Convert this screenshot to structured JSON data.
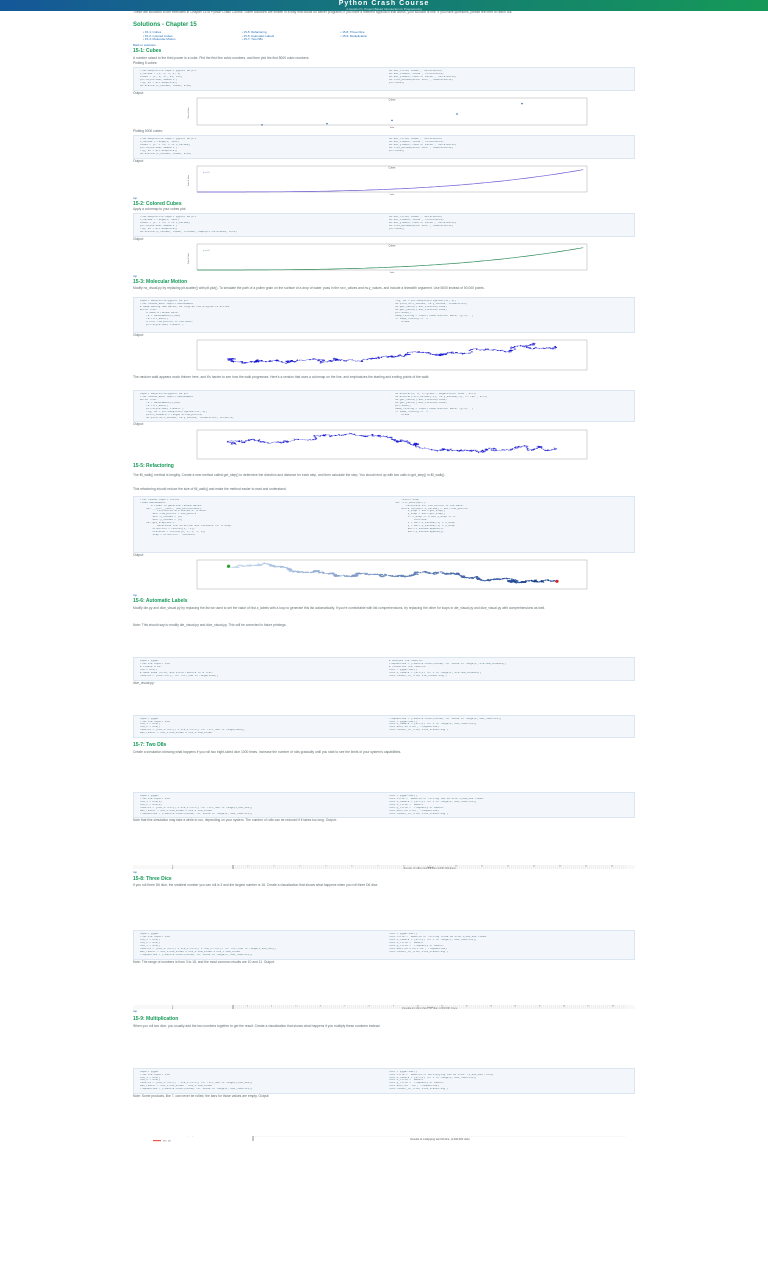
{
  "header": {
    "title": "Python Crash Course",
    "subtitle": "A Hands-On, Project-Based Introduction to Programming"
  },
  "blocks": [
    {
      "t": "p",
      "text": "These are solutions to the exercises in Chapter 15 of Python Crash Course. Some solutions are written in a way that builds on earlier programs; if you have a different approach that works, your solution is fine. If you have questions, please feel free to reach out."
    },
    {
      "t": "h1",
      "text": "Solutions - Chapter 15"
    },
    {
      "t": "ul",
      "items": [
        "15-1: Cubes",
        "15-2: Colored Cubes",
        "15-3: Molecular Motion",
        "15-5: Refactoring",
        "15-6: Automatic Labels",
        "15-7: Two D8s",
        "15-8: Three Dice",
        "15-9: Multiplication"
      ]
    },
    {
      "t": "a",
      "text": "Back to solutions."
    },
    {
      "t": "h2",
      "text": "15-1: Cubes"
    },
    {
      "t": "p",
      "text": "A number raised to the third power is a cube. Plot the first five cubic numbers, and then plot the first 5000 cubic numbers."
    },
    {
      "t": "p",
      "text": "Plotting 5 cubes:"
    },
    {
      "t": "code",
      "lines": [
        "from matplotlib import pyplot as plt",
        "",
        "x_values = [1, 2, 3, 4, 5]",
        "cubes = [1, 8, 27, 64, 125]",
        "",
        "plt.style.use('seaborn')",
        "fig, ax = plt.subplots()",
        "ax.scatter(x_values, cubes, s=40)",
        "ax.set_title(\"Cubes\", fontsize=24)",
        "ax.set_xlabel('Value', fontsize=14)",
        "ax.set_ylabel('Cube of Value', fontsize=14)",
        "ax.tick_params(axis='both', labelsize=14)",
        "",
        "plt.show()"
      ]
    },
    {
      "t": "p",
      "text": "Output:"
    },
    {
      "t": "chart",
      "ci": 0
    },
    {
      "t": "p",
      "text": "Plotting 5000 cubes:"
    },
    {
      "t": "code",
      "lines": [
        "from matplotlib import pyplot as plt",
        "",
        "x_values = range(1, 5001)",
        "cubes = [x**3 for x in x_values]",
        "",
        "plt.style.use('seaborn')",
        "fig, ax = plt.subplots()",
        "ax.scatter(x_values, cubes, s=10)",
        "ax.set_title(\"Cubes\", fontsize=24)",
        "ax.set_xlabel('Value', fontsize=14)",
        "ax.set_ylabel('Cube of Value', fontsize=14)",
        "ax.tick_params(axis='both', labelsize=14)",
        "",
        "plt.show()"
      ]
    },
    {
      "t": "p",
      "text": "Output:"
    },
    {
      "t": "chart",
      "ci": 1
    },
    {
      "t": "a",
      "text": "top"
    },
    {
      "t": "h2",
      "text": "15-2: Colored Cubes"
    },
    {
      "t": "p",
      "text": "Apply a colormap to your cubes plot."
    },
    {
      "t": "code",
      "lines": [
        "from matplotlib import pyplot as plt",
        "",
        "x_values = range(1, 5001)",
        "cubes = [x**3 for x in x_values]",
        "",
        "plt.style.use('seaborn')",
        "fig, ax = plt.subplots()",
        "ax.scatter(x_values, cubes, c=cubes, cmap=plt.cm.Greens, s=10)",
        "ax.set_title(\"Cubes\", fontsize=24)",
        "ax.set_xlabel('Value', fontsize=14)",
        "ax.set_ylabel('Cube of Value', fontsize=14)",
        "ax.tick_params(axis='both', labelsize=14)",
        "",
        "plt.show()"
      ]
    },
    {
      "t": "p",
      "text": "Output:"
    },
    {
      "t": "chart",
      "ci": 2
    },
    {
      "t": "a",
      "text": "top"
    },
    {
      "t": "h2",
      "text": "15-3: Molecular Motion"
    },
    {
      "t": "p",
      "text": "Modify rw_visual.py by replacing plt.scatter() with plt.plot(). To simulate the path of a pollen grain on the surface of a drop of water, pass in the rw.x_values and rw.y_values, and include a linewidth argument. Use 5000 instead of 50,000 points."
    },
    {
      "t": "code",
      "lines": [
        "import matplotlib.pyplot as plt",
        "",
        "from random_walk import RandomWalk",
        "",
        "# Keep making new walks, as long as the program is active.",
        "while True:",
        "    # Make a random walk.",
        "    rw = RandomWalk(5_000)",
        "    rw.fill_walk()",
        "",
        "    # Plot the points in the walk.",
        "    plt.style.use('classic')",
        "    fig, ax = plt.subplots(figsize=(15, 9))",
        "    ax.plot(rw.x_values, rw.y_values, linewidth=1)",
        "    ax.get_xaxis().set_visible(False)",
        "    ax.get_yaxis().set_visible(False)",
        "",
        "    plt.show()",
        "",
        "    keep_running = input(\"Make another walk? (y/n): \")",
        "    if keep_running == 'n':",
        "        break"
      ]
    },
    {
      "t": "p",
      "text": "Output:"
    },
    {
      "t": "chart",
      "ci": 3
    },
    {
      "t": "p",
      "text": "The random walk appears much thinner here, and it's harder to see how the walk progresses. Here's a version that uses a colormap on the line, and emphasizes the starting and ending points of the walk:"
    },
    {
      "t": "code",
      "lines": [
        "import matplotlib.pyplot as plt",
        "",
        "from random_walk import RandomWalk",
        "",
        "while True:",
        "    rw = RandomWalk(5_000)",
        "    rw.fill_walk()",
        "",
        "    plt.style.use('classic')",
        "    fig, ax = plt.subplots(figsize=(15, 9))",
        "    point_numbers = range(rw.num_points)",
        "    ax.plot(rw.x_values, rw.y_values, linewidth=1, zorder=1)",
        "    ax.scatter(0, 0, c='green', edgecolors='none', s=75)",
        "    ax.scatter(rw.x_values[-1], rw.y_values[-1], c='red', s=75)",
        "    ax.get_xaxis().set_visible(False)",
        "    ax.get_yaxis().set_visible(False)",
        "    plt.show()",
        "",
        "    keep_running = input(\"Make another walk? (y/n): \")",
        "    if keep_running == 'n':",
        "        break"
      ]
    },
    {
      "t": "p",
      "text": "Output:"
    },
    {
      "t": "chart",
      "ci": 4
    },
    {
      "t": "h2",
      "text": "15-5: Refactoring"
    },
    {
      "t": "p",
      "text": "The fill_walk() method is lengthy. Create a new method called get_step() to determine the direction and distance for each step, and then calculate the step. You should end up with two calls to get_step() in fill_walk()."
    },
    {
      "t": "p",
      "text": "This refactoring should reduce the size of fill_walk() and make the method easier to read and understand."
    },
    {
      "t": "code",
      "lines": [
        "from random import choice",
        "",
        "class RandomWalk:",
        "    \"\"\"A class to generate random walks.\"\"\"",
        "",
        "    def __init__(self, num_points=5000):",
        "        \"\"\"Initialize attributes of a walk.\"\"\"",
        "        self.num_points = num_points",
        "        self.x_values = [0]",
        "        self.y_values = [0]",
        "",
        "    def get_step(self):",
        "        \"\"\"Determine the direction and distance for a step.\"\"\"",
        "        direction = choice([1, -1])",
        "        distance = choice([0, 1, 2, 3, 4])",
        "        step = direction * distance",
        "        return step",
        "",
        "    def fill_walk(self):",
        "        \"\"\"Calculate all the points in the walk.\"\"\"",
        "        while len(self.x_values) < self.num_points:",
        "            x_step = self.get_step()",
        "            y_step = self.get_step()",
        "            if x_step == 0 and y_step == 0:",
        "                continue",
        "            x = self.x_values[-1] + x_step",
        "            y = self.y_values[-1] + y_step",
        "            self.x_values.append(x)",
        "            self.y_values.append(y)"
      ]
    },
    {
      "t": "p",
      "text": "Output:"
    },
    {
      "t": "chart",
      "ci": 5
    },
    {
      "t": "a",
      "text": "top"
    },
    {
      "t": "h2",
      "text": "15-6: Automatic Labels"
    },
    {
      "t": "p",
      "text": "Modify die.py and dice_visual.py by replacing the list we used to set the value of hist.x_labels with a loop to generate this list automatically. If you're comfortable with list comprehensions, try replacing the other for loops in die_visual.py and dice_visual.py with comprehensions as well."
    },
    {
      "t": "p",
      "text": "Note: This should say to modify die_visual.py and dice_visual.py. This will be corrected in future printings."
    },
    {
      "t": "code",
      "lines": [
        "import pygal",
        "",
        "from die import Die",
        "",
        "# Create a D6.",
        "die = Die()",
        "",
        "# Make some rolls, and store results in a list.",
        "results = [die.roll() for roll_num in range(1000)]",
        "",
        "# Analyze the results.",
        "frequencies = [results.count(value) for value in range(1, die.num_sides+1)]",
        "",
        "# Visualize the results.",
        "hist = pygal.Bar()",
        "hist.x_labels = [str(x) for x in range(1, die.num_sides+1)]",
        "hist.render_to_file('die_visual.svg')"
      ]
    },
    {
      "t": "p",
      "text": "dice_visual.py:"
    },
    {
      "t": "code",
      "lines": [
        "import pygal",
        "",
        "from die import Die",
        "",
        "die_1 = Die()",
        "die_2 = Die()",
        "",
        "results = [die_1.roll() + die_2.roll() for roll_num in range(1000)]",
        "max_result = die_1.num_sides + die_2.num_sides",
        "frequencies = [results.count(value) for value in range(2, max_result+1)]",
        "",
        "hist = pygal.Bar()",
        "hist.x_labels = [str(x) for x in range(2, max_result+1)]",
        "hist.add('D6 + D6', frequencies)",
        "hist.render_to_file('dice_visual.svg')"
      ]
    },
    {
      "t": "h2",
      "text": "15-7: Two D8s"
    },
    {
      "t": "p",
      "text": "Create a simulation showing what happens if you roll two eight-sided dice 1000 times. Increase the number of rolls gradually until you start to see the limits of your system's capabilities."
    },
    {
      "t": "code",
      "lines": [
        "import pygal",
        "",
        "from die import Die",
        "",
        "die_1 = Die(8)",
        "die_2 = Die(8)",
        "",
        "results = [die_1.roll() + die_2.roll() for roll_num in range(1_000_000)]",
        "max_result = die_1.num_sides + die_2.num_sides",
        "frequencies = [results.count(value) for value in range(2, max_result+1)]",
        "",
        "hist = pygal.Bar()",
        "hist.title = \"Results of rolling two D8 dice 1,000,000 times.\"",
        "hist.x_labels = [str(x) for x in range(2, max_result+1)]",
        "hist.x_title = \"Result\"",
        "hist.y_title = \"Frequency of Result\"",
        "hist.add('D8 + D8', frequencies)",
        "hist.render_to_file('dice_visual.svg')"
      ]
    },
    {
      "t": "p",
      "text": "Note that this simulation may take a while to run, depending on your system. The number of rolls can be reduced if it takes too long. Output:"
    },
    {
      "t": "chart",
      "ci": 6
    },
    {
      "t": "a",
      "text": "top"
    },
    {
      "t": "h2",
      "text": "15-8: Three Dice"
    },
    {
      "t": "p",
      "text": "If you roll three D6 dice, the smallest number you can roll is 3 and the largest number is 18. Create a visualization that shows what happens when you roll three D6 dice."
    },
    {
      "t": "code",
      "lines": [
        "import pygal",
        "",
        "from die import Die",
        "",
        "die_1 = Die()",
        "die_2 = Die()",
        "die_3 = Die()",
        "",
        "results = [die_1.roll() + die_2.roll() + die_3.roll() for roll_num in range(1_000_000)]",
        "max_result = die_1.num_sides + die_2.num_sides + die_3.num_sides",
        "frequencies = [results.count(value) for value in range(3, max_result+1)]",
        "",
        "hist = pygal.Bar()",
        "hist.title = \"Results of rolling three D6 dice 1,000,000 times.\"",
        "hist.x_labels = [str(x) for x in range(3, max_result+1)]",
        "hist.x_title = \"Result\"",
        "hist.y_title = \"Frequency of Result\"",
        "hist.add('D6 + D6 + D6', frequencies)",
        "hist.render_to_file('dice_visual.svg')"
      ]
    },
    {
      "t": "p",
      "text": "Note: The range of numbers is from 3 to 18, and the most common results are 10 and 11. Output:"
    },
    {
      "t": "chart",
      "ci": 7
    },
    {
      "t": "a",
      "text": "top"
    },
    {
      "t": "h2",
      "text": "15-9: Multiplication"
    },
    {
      "t": "p",
      "text": "When you roll two dice, you usually add the two numbers together to get the result. Create a visualization that shows what happens if you multiply these numbers instead."
    },
    {
      "t": "code",
      "lines": [
        "import pygal",
        "",
        "from die import Die",
        "",
        "die_1 = Die()",
        "die_2 = Die()",
        "",
        "results = [die_1.roll() * die_2.roll() for roll_num in range(1_000_000)]",
        "max_result = die_1.num_sides * die_2.num_sides",
        "frequencies = [results.count(value) for value in range(1, max_result+1)]",
        "",
        "hist = pygal.Bar()",
        "hist.title = \"Results of multiplying two D6 dice. (1,000,000 rolls)\"",
        "hist.x_labels = [str(x) for x in range(1, max_result+1)]",
        "hist.x_title = \"Result\"",
        "hist.y_title = \"Frequency of Result\"",
        "hist.add('D6 * D6', frequencies)",
        "hist.render_to_file('dice_visual.svg')"
      ]
    },
    {
      "t": "p",
      "text": "Note: Some products, like 7, can never be rolled; the bars for those values are empty. Output:"
    },
    {
      "t": "chart",
      "ci": 8
    }
  ],
  "chart_data": [
    {
      "type": "scatter",
      "title": "Cubes",
      "xlabel": "Value",
      "ylabel": "Cube of Value",
      "x": [
        1,
        2,
        3,
        4,
        5
      ],
      "y": [
        1,
        8,
        27,
        64,
        125
      ],
      "xlim": [
        0,
        6
      ],
      "ylim": [
        0,
        140
      ],
      "color": "#3a6fb0"
    },
    {
      "type": "line",
      "title": "Cubes",
      "xlabel": "Value",
      "ylabel": "Cube of Value",
      "x_range": [
        1,
        5000
      ],
      "formula": "y = x^3",
      "xlim": [
        0,
        5000
      ],
      "ylim": [
        0,
        125000000000
      ],
      "color": "#6b5bd6"
    },
    {
      "type": "line",
      "title": "Cubes",
      "xlabel": "Value",
      "ylabel": "Cube of Value",
      "x_range": [
        1,
        5000
      ],
      "formula": "y = x^3",
      "xlim": [
        0,
        5000
      ],
      "ylim": [
        0,
        125000000000
      ],
      "color": "#2e8b57",
      "colormap": "Greens"
    },
    {
      "type": "line",
      "title": "",
      "variant": "random-walk",
      "points": 5000,
      "color": "#1010d0"
    },
    {
      "type": "line",
      "title": "",
      "variant": "random-walk",
      "points": 5000,
      "color": "#1010d0"
    },
    {
      "type": "scatter",
      "title": "",
      "variant": "random-walk",
      "points": 5000,
      "colormap": "Blues",
      "start_color": "#2ca02c",
      "end_color": "#d62728"
    },
    {
      "type": "bar",
      "title": "Results of rolling two D8 dice 1,000,000 times.",
      "xlabel": "Result",
      "ylabel": "Frequency of Result",
      "legend": "top-left",
      "series": [
        {
          "name": "D8 + D8",
          "values": [
            15625,
            31250,
            46875,
            62500,
            78125,
            93750,
            109375,
            125000,
            109375,
            93750,
            78125,
            62500,
            46875,
            31250,
            15625
          ]
        }
      ],
      "categories": [
        "2",
        "3",
        "4",
        "5",
        "6",
        "7",
        "8",
        "9",
        "10",
        "11",
        "12",
        "13",
        "14",
        "15",
        "16"
      ],
      "color": "#f0554b",
      "grid": true
    },
    {
      "type": "bar",
      "title": "Results of rolling three D6 dice 1,000,000 times.",
      "xlabel": "Result",
      "ylabel": "Frequency of Result",
      "legend": "top-left",
      "series": [
        {
          "name": "D6 + D6 + D6",
          "values": [
            4630,
            13889,
            27778,
            46296,
            69444,
            97222,
            115741,
            125000,
            125000,
            115741,
            97222,
            69444,
            46296,
            27778,
            13889,
            4630
          ]
        }
      ],
      "categories": [
        "3",
        "4",
        "5",
        "6",
        "7",
        "8",
        "9",
        "10",
        "11",
        "12",
        "13",
        "14",
        "15",
        "16",
        "17",
        "18"
      ],
      "color": "#f0554b",
      "grid": true
    },
    {
      "type": "bar",
      "title": "Results of multiplying two D6 dice. (1,000,000 rolls)",
      "xlabel": "Result",
      "ylabel": "Frequency of Result",
      "legend": "top-left",
      "series": [
        {
          "name": "D6 * D6",
          "values": [
            27778,
            55556,
            55556,
            83333,
            55556,
            111111,
            0,
            55556,
            27778,
            55556,
            0,
            111111,
            0,
            0,
            55556,
            27778,
            0,
            55556,
            0,
            55556,
            0,
            0,
            0,
            55556,
            27778,
            0,
            0,
            0,
            0,
            55556,
            0,
            0,
            0,
            0,
            0,
            27778
          ]
        }
      ],
      "categories": [
        "1",
        "2",
        "3",
        "4",
        "5",
        "6",
        "7",
        "8",
        "9",
        "10",
        "11",
        "12",
        "13",
        "14",
        "15",
        "16",
        "17",
        "18",
        "19",
        "20",
        "21",
        "22",
        "23",
        "24",
        "25",
        "26",
        "27",
        "28",
        "29",
        "30",
        "31",
        "32",
        "33",
        "34",
        "35",
        "36"
      ],
      "color": "#f0554b",
      "grid": true
    }
  ]
}
